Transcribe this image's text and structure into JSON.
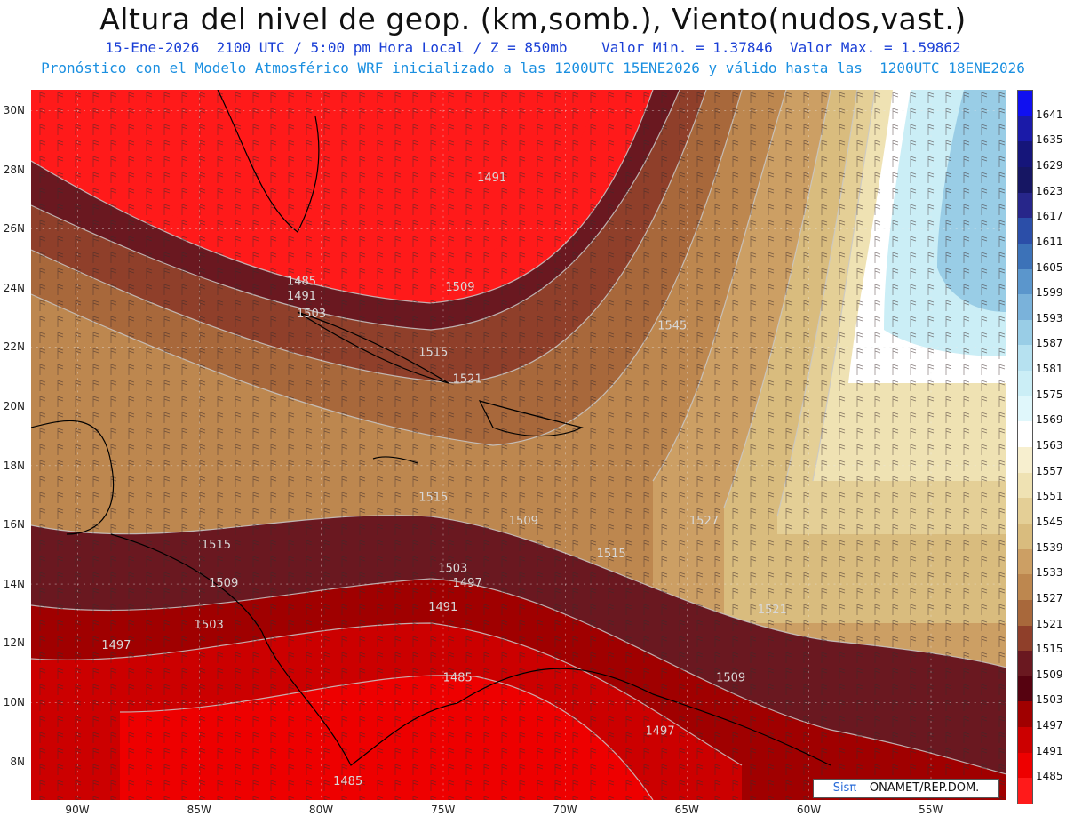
{
  "header": {
    "title": "Altura del nivel de geop. (km,somb.), Viento(nudos,vast.)",
    "subtitle1": "15-Ene-2026  2100 UTC / 5:00 pm Hora Local / Z = 850mb    Valor Min. = 1.37846  Valor Max. = 1.59862",
    "subtitle2": "Pronóstico con el Modelo Atmosférico WRF inicializado a las 1200UTC_15ENE2026 y válido hasta las  1200UTC_18ENE2026"
  },
  "map": {
    "lat_labels": [
      "30N",
      "28N",
      "26N",
      "24N",
      "22N",
      "20N",
      "18N",
      "16N",
      "14N",
      "12N",
      "10N",
      "8N"
    ],
    "lon_labels": [
      "90W",
      "85W",
      "80W",
      "75W",
      "70W",
      "65W",
      "60W",
      "55W"
    ],
    "contour_labels": [
      {
        "text": "1491",
        "lon": -73.0,
        "lat": 27.6
      },
      {
        "text": "1485",
        "lon": -80.8,
        "lat": 24.1
      },
      {
        "text": "1491",
        "lon": -80.8,
        "lat": 23.6
      },
      {
        "text": "1503",
        "lon": -80.4,
        "lat": 23.0
      },
      {
        "text": "1509",
        "lon": -74.3,
        "lat": 23.9
      },
      {
        "text": "1515",
        "lon": -75.4,
        "lat": 21.7
      },
      {
        "text": "1521",
        "lon": -74.0,
        "lat": 20.8
      },
      {
        "text": "1545",
        "lon": -65.6,
        "lat": 22.6
      },
      {
        "text": "1515",
        "lon": -75.4,
        "lat": 16.8
      },
      {
        "text": "1509",
        "lon": -71.7,
        "lat": 16.0
      },
      {
        "text": "1515",
        "lon": -84.3,
        "lat": 15.2
      },
      {
        "text": "1515",
        "lon": -68.1,
        "lat": 14.9
      },
      {
        "text": "1527",
        "lon": -64.3,
        "lat": 16.0
      },
      {
        "text": "1503",
        "lon": -74.6,
        "lat": 14.4
      },
      {
        "text": "1497",
        "lon": -74.0,
        "lat": 13.9
      },
      {
        "text": "1509",
        "lon": -84.0,
        "lat": 13.9
      },
      {
        "text": "1491",
        "lon": -75.0,
        "lat": 13.1
      },
      {
        "text": "1521",
        "lon": -61.5,
        "lat": 13.0
      },
      {
        "text": "1503",
        "lon": -84.6,
        "lat": 12.5
      },
      {
        "text": "1497",
        "lon": -88.4,
        "lat": 11.8
      },
      {
        "text": "1485",
        "lon": -74.4,
        "lat": 10.7
      },
      {
        "text": "1509",
        "lon": -63.2,
        "lat": 10.7
      },
      {
        "text": "1497",
        "lon": -66.1,
        "lat": 8.9
      },
      {
        "text": "1485",
        "lon": -78.9,
        "lat": 7.2
      }
    ]
  },
  "colorbar": {
    "labels": [
      "1641",
      "1635",
      "1629",
      "1623",
      "1617",
      "1611",
      "1605",
      "1599",
      "1593",
      "1587",
      "1581",
      "1575",
      "1569",
      "1563",
      "1557",
      "1551",
      "1545",
      "1539",
      "1533",
      "1527",
      "1521",
      "1515",
      "1509",
      "1503",
      "1497",
      "1491",
      "1485"
    ],
    "colors": [
      "#1010f0",
      "#1a1aa8",
      "#15157a",
      "#161663",
      "#27268a",
      "#2b4ea8",
      "#3c72b8",
      "#5b96cc",
      "#7ab2da",
      "#99cde6",
      "#b6e1f0",
      "#cbeef6",
      "#e0f7fb",
      "#ffffff",
      "#f7efcf",
      "#efe2b3",
      "#e4cf96",
      "#d9bc7e",
      "#cc9f64",
      "#bd874f",
      "#a8683b",
      "#8f3f2a",
      "#6a1820",
      "#560210",
      "#a00000",
      "#cc0000",
      "#ee0000",
      "#ff1a1a"
    ]
  },
  "credit": {
    "brand": "Sisπ",
    "text": " – ONAMET/REP.DOM."
  }
}
